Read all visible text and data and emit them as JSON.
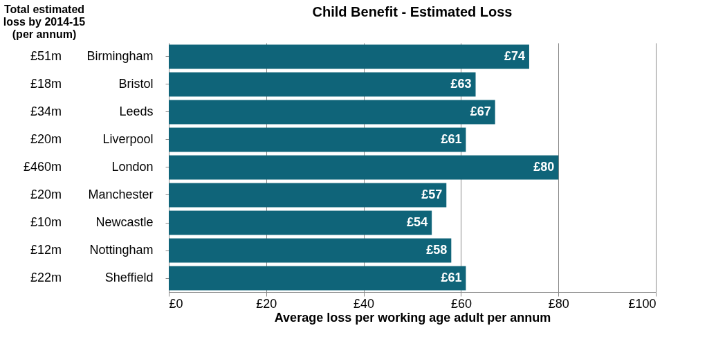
{
  "chart_data": {
    "type": "bar",
    "orientation": "horizontal",
    "title": "Child Benefit - Estimated Loss",
    "xlabel": "Average loss per working age adult per annum",
    "categories": [
      "Birmingham",
      "Bristol",
      "Leeds",
      "Liverpool",
      "London",
      "Manchester",
      "Newcastle",
      "Nottingham",
      "Sheffield"
    ],
    "values": [
      74,
      63,
      67,
      61,
      80,
      57,
      54,
      58,
      61
    ],
    "value_labels": [
      "£74",
      "£63",
      "£67",
      "£61",
      "£80",
      "£57",
      "£54",
      "£58",
      "£61"
    ],
    "color": "#0f6479",
    "xlim": [
      0,
      100
    ],
    "xticks": [
      {
        "value": 0,
        "label": "£0"
      },
      {
        "value": 20,
        "label": "£20"
      },
      {
        "value": 40,
        "label": "£40"
      },
      {
        "value": 60,
        "label": "£60"
      },
      {
        "value": 80,
        "label": "£80"
      },
      {
        "value": 100,
        "label": "£100"
      }
    ],
    "grid": "x",
    "annotations": [
      "Total estimated\nloss by 2014-15\n(per annum)",
      "£51m",
      "£18m",
      "£34m",
      "£20m",
      "£460m",
      "£20m",
      "£10m",
      "£12m",
      "£22m"
    ]
  }
}
